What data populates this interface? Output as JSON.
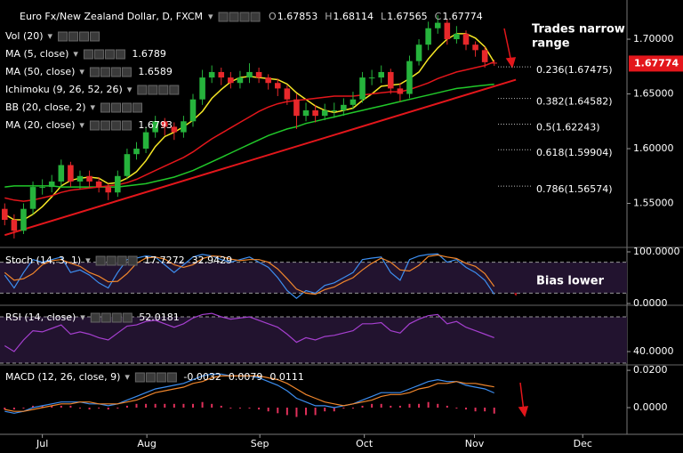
{
  "chart_data": [
    {
      "type": "candlestick",
      "title": "Euro Fx/New Zealand Dollar, D, FXCM",
      "ohlc_letters": [
        "O",
        "H",
        "L",
        "C"
      ],
      "x": [
        0,
        1,
        2,
        3,
        4,
        5,
        6,
        7,
        8,
        9,
        10,
        11,
        12,
        13,
        14,
        15,
        16,
        17,
        18,
        19,
        20,
        21,
        22,
        23,
        24,
        25,
        26,
        27,
        28,
        29,
        30,
        31,
        32,
        33,
        34,
        35,
        36,
        37,
        38,
        39,
        40,
        41,
        42,
        43,
        44,
        45,
        46,
        47,
        48,
        49,
        50,
        51,
        52
      ],
      "xlim": [
        -0.5,
        66.1
      ],
      "xticks": [
        {
          "value": 4,
          "label": "Jul"
        },
        {
          "value": 15.1,
          "label": "Aug"
        },
        {
          "value": 27.1,
          "label": "Sep"
        },
        {
          "value": 38.2,
          "label": "Oct"
        },
        {
          "value": 49.9,
          "label": "Nov"
        },
        {
          "value": 61.4,
          "label": "Dec"
        }
      ],
      "ylim": [
        1.5106,
        1.7358
      ],
      "yticks": [
        {
          "value": 1.55,
          "label": "1.55000"
        },
        {
          "value": 1.6,
          "label": "1.60000"
        },
        {
          "value": 1.65,
          "label": "1.65000"
        },
        {
          "value": 1.7,
          "label": "1.70000"
        }
      ],
      "up_color": "#26b33c",
      "down_color": "#e8282b",
      "candles": {
        "open": [
          1.545,
          1.535,
          1.525,
          1.545,
          1.565,
          1.565,
          1.57,
          1.585,
          1.57,
          1.575,
          1.57,
          1.565,
          1.56,
          1.575,
          1.595,
          1.6,
          1.615,
          1.625,
          1.62,
          1.615,
          1.625,
          1.645,
          1.665,
          1.67,
          1.665,
          1.66,
          1.665,
          1.67,
          1.665,
          1.66,
          1.655,
          1.645,
          1.63,
          1.635,
          1.63,
          1.635,
          1.635,
          1.64,
          1.645,
          1.665,
          1.665,
          1.67,
          1.655,
          1.65,
          1.68,
          1.695,
          1.71,
          1.715,
          1.7,
          1.705,
          1.695,
          1.69,
          1.67853
        ],
        "high": [
          1.55,
          1.54,
          1.55,
          1.57,
          1.572,
          1.576,
          1.59,
          1.588,
          1.58,
          1.58,
          1.574,
          1.568,
          1.58,
          1.6,
          1.606,
          1.62,
          1.63,
          1.628,
          1.624,
          1.63,
          1.65,
          1.672,
          1.676,
          1.674,
          1.67,
          1.671,
          1.678,
          1.674,
          1.668,
          1.664,
          1.658,
          1.65,
          1.642,
          1.64,
          1.641,
          1.642,
          1.646,
          1.652,
          1.67,
          1.672,
          1.676,
          1.673,
          1.66,
          1.685,
          1.7,
          1.716,
          1.722,
          1.718,
          1.712,
          1.708,
          1.698,
          1.693,
          1.68114
        ],
        "low": [
          1.53,
          1.518,
          1.522,
          1.54,
          1.558,
          1.56,
          1.566,
          1.565,
          1.563,
          1.565,
          1.56,
          1.553,
          1.556,
          1.572,
          1.59,
          1.596,
          1.61,
          1.612,
          1.608,
          1.61,
          1.62,
          1.64,
          1.66,
          1.658,
          1.655,
          1.655,
          1.66,
          1.66,
          1.654,
          1.648,
          1.64,
          1.618,
          1.625,
          1.624,
          1.626,
          1.628,
          1.63,
          1.636,
          1.642,
          1.658,
          1.66,
          1.65,
          1.643,
          1.646,
          1.676,
          1.69,
          1.705,
          1.695,
          1.696,
          1.69,
          1.684,
          1.674,
          1.67565
        ],
        "close": [
          1.535,
          1.525,
          1.545,
          1.565,
          1.565,
          1.57,
          1.585,
          1.57,
          1.575,
          1.57,
          1.565,
          1.56,
          1.575,
          1.595,
          1.6,
          1.615,
          1.625,
          1.62,
          1.615,
          1.625,
          1.645,
          1.665,
          1.67,
          1.665,
          1.66,
          1.665,
          1.67,
          1.665,
          1.66,
          1.655,
          1.645,
          1.63,
          1.635,
          1.63,
          1.635,
          1.635,
          1.64,
          1.645,
          1.665,
          1.665,
          1.67,
          1.655,
          1.65,
          1.68,
          1.695,
          1.71,
          1.715,
          1.7,
          1.705,
          1.695,
          1.69,
          1.679,
          1.67774
        ]
      },
      "studies": [
        {
          "name": "Vol (20)"
        },
        {
          "name": "MA (5, close)",
          "color": "#f5e625",
          "values": [
            1.54,
            1.535,
            1.535,
            1.54,
            1.547,
            1.556,
            1.566,
            1.571,
            1.573,
            1.574,
            1.573,
            1.568,
            1.569,
            1.573,
            1.579,
            1.589,
            1.602,
            1.611,
            1.615,
            1.62,
            1.626,
            1.634,
            1.646,
            1.654,
            1.661,
            1.665,
            1.666,
            1.665,
            1.664,
            1.663,
            1.659,
            1.651,
            1.645,
            1.639,
            1.635,
            1.633,
            1.635,
            1.637,
            1.644,
            1.65,
            1.657,
            1.658,
            1.659,
            1.664,
            1.67,
            1.682,
            1.692,
            1.7,
            1.705,
            1.705,
            1.701,
            1.693,
            1.6789
          ]
        },
        {
          "name": "MA (50, close)",
          "color": "#21c82a",
          "values": [
            1.565,
            1.566,
            1.566,
            1.566,
            1.566,
            1.566,
            1.565,
            1.565,
            1.565,
            1.565,
            1.565,
            1.565,
            1.565,
            1.566,
            1.567,
            1.568,
            1.57,
            1.572,
            1.574,
            1.577,
            1.58,
            1.584,
            1.588,
            1.592,
            1.596,
            1.6,
            1.604,
            1.608,
            1.612,
            1.615,
            1.618,
            1.62,
            1.623,
            1.625,
            1.627,
            1.629,
            1.631,
            1.633,
            1.635,
            1.637,
            1.639,
            1.641,
            1.643,
            1.645,
            1.647,
            1.649,
            1.651,
            1.653,
            1.655,
            1.656,
            1.657,
            1.658,
            1.6589
          ]
        },
        {
          "name": "Ichimoku (9, 26, 52, 26)"
        },
        {
          "name": "BB (20, close, 2)"
        },
        {
          "name": "MA (20, close)",
          "color": "#e3161b",
          "values": [
            1.555,
            1.553,
            1.552,
            1.553,
            1.555,
            1.557,
            1.56,
            1.562,
            1.563,
            1.564,
            1.565,
            1.566,
            1.567,
            1.569,
            1.572,
            1.576,
            1.58,
            1.584,
            1.588,
            1.592,
            1.597,
            1.603,
            1.609,
            1.614,
            1.619,
            1.624,
            1.629,
            1.634,
            1.638,
            1.641,
            1.643,
            1.644,
            1.645,
            1.646,
            1.647,
            1.648,
            1.648,
            1.648,
            1.649,
            1.65,
            1.651,
            1.652,
            1.652,
            1.654,
            1.657,
            1.66,
            1.664,
            1.667,
            1.67,
            1.672,
            1.674,
            1.676,
            1.6793
          ]
        }
      ],
      "trendline": {
        "color": "#e3161b",
        "x": [
          0,
          54.3
        ],
        "y": [
          1.521,
          1.663
        ]
      },
      "fib": [
        {
          "label": "0.236(1.67475)",
          "value": 1.67475,
          "color": "#ffffff"
        },
        {
          "label": "0.382(1.64582)",
          "value": 1.64582,
          "color": "#ffffff"
        },
        {
          "label": "0.5(1.62243)",
          "value": 1.62243,
          "color": "#9fc46a"
        },
        {
          "label": "0.618(1.59904)",
          "value": 1.59904,
          "color": "#ffffff"
        },
        {
          "label": "0.786(1.56574)",
          "value": 1.56574,
          "color": "#ffffff"
        }
      ],
      "annotations": [
        "Trades narrow",
        "range"
      ]
    },
    {
      "type": "line",
      "name": "Stoch (14, 3, 1)",
      "ylim": [
        -3.4,
        106.9
      ],
      "yticks": [
        {
          "value": 100,
          "label": "100.0000"
        },
        {
          "value": 0,
          "label": "0.0000"
        }
      ],
      "bands": [
        20,
        80
      ],
      "series": [
        {
          "color": "#3d8ef0",
          "values": [
            55,
            30,
            60,
            85,
            80,
            85,
            90,
            60,
            65,
            55,
            40,
            30,
            60,
            85,
            88,
            92,
            90,
            75,
            60,
            75,
            90,
            95,
            92,
            85,
            80,
            85,
            90,
            80,
            70,
            50,
            25,
            10,
            25,
            20,
            35,
            40,
            50,
            60,
            85,
            88,
            90,
            60,
            45,
            85,
            92,
            95,
            96,
            80,
            85,
            70,
            60,
            45,
            17.7272
          ]
        },
        {
          "color": "#f0862c",
          "values": [
            60,
            45,
            48,
            58,
            75,
            83,
            85,
            78,
            72,
            60,
            53,
            42,
            43,
            58,
            78,
            88,
            90,
            86,
            75,
            70,
            75,
            87,
            92,
            91,
            86,
            83,
            85,
            85,
            80,
            67,
            48,
            28,
            20,
            18,
            27,
            32,
            42,
            50,
            65,
            78,
            88,
            80,
            65,
            63,
            74,
            91,
            94,
            90,
            87,
            78,
            72,
            58,
            32.9429
          ]
        }
      ],
      "annotation": "Bias lower"
    },
    {
      "type": "line",
      "name": "RSI (14, close)",
      "ylim": [
        28.5,
        80
      ],
      "yticks": [
        {
          "value": 40,
          "label": "40.0000"
        }
      ],
      "bands": [
        30,
        70
      ],
      "series": [
        {
          "color": "#a53fcf",
          "values": [
            45,
            40,
            50,
            58,
            57,
            60,
            63,
            55,
            57,
            55,
            52,
            50,
            56,
            62,
            63,
            66,
            67,
            64,
            61,
            64,
            69,
            72,
            73,
            70,
            68,
            69,
            70,
            67,
            64,
            61,
            55,
            48,
            52,
            50,
            53,
            54,
            56,
            58,
            64,
            64,
            65,
            58,
            56,
            64,
            68,
            71,
            72,
            64,
            66,
            61,
            58,
            55,
            52.0181
          ]
        }
      ]
    },
    {
      "type": "line",
      "name": "MACD (12, 26, close, 9)",
      "ylim": [
        -0.0143,
        0.0229
      ],
      "yticks": [
        {
          "value": 0.02,
          "label": "0.0200"
        },
        {
          "value": 0,
          "label": "0.0000"
        }
      ],
      "series": [
        {
          "type": "bar",
          "color": "#e0305a",
          "values": [
            -0.001,
            -0.001,
            0,
            0.001,
            0.001,
            0.001,
            0.001,
            0.001,
            0,
            -0.001,
            0,
            -0.001,
            0,
            0.001,
            0.002,
            0.002,
            0.002,
            0.002,
            0.002,
            0.002,
            0.002,
            0.003,
            0.002,
            0.001,
            0,
            0,
            0,
            -0.001,
            -0.002,
            -0.003,
            -0.004,
            -0.005,
            -0.004,
            -0.004,
            -0.002,
            -0.002,
            0,
            0,
            0.001,
            0.002,
            0.002,
            0.001,
            0.001,
            0.002,
            0.002,
            0.003,
            0.002,
            0.001,
            0,
            -0.001,
            -0.002,
            -0.002,
            -0.0032
          ]
        },
        {
          "color": "#3d8ef0",
          "values": [
            -0.002,
            -0.003,
            -0.002,
            0,
            0.001,
            0.002,
            0.003,
            0.003,
            0.003,
            0.002,
            0.002,
            0.001,
            0.002,
            0.004,
            0.006,
            0.008,
            0.01,
            0.011,
            0.012,
            0.013,
            0.015,
            0.017,
            0.018,
            0.018,
            0.017,
            0.017,
            0.017,
            0.016,
            0.014,
            0.012,
            0.009,
            0.005,
            0.003,
            0.001,
            0.001,
            0.0,
            0.001,
            0.002,
            0.004,
            0.006,
            0.008,
            0.008,
            0.008,
            0.01,
            0.012,
            0.014,
            0.015,
            0.014,
            0.014,
            0.012,
            0.011,
            0.01,
            0.0079
          ]
        },
        {
          "color": "#f0862c",
          "values": [
            -0.001,
            -0.002,
            -0.002,
            -0.001,
            0,
            0.001,
            0.002,
            0.002,
            0.003,
            0.003,
            0.002,
            0.002,
            0.002,
            0.003,
            0.004,
            0.006,
            0.008,
            0.009,
            0.01,
            0.011,
            0.013,
            0.014,
            0.016,
            0.017,
            0.017,
            0.017,
            0.017,
            0.017,
            0.016,
            0.015,
            0.013,
            0.01,
            0.007,
            0.005,
            0.003,
            0.002,
            0.001,
            0.002,
            0.003,
            0.004,
            0.006,
            0.007,
            0.007,
            0.008,
            0.01,
            0.011,
            0.013,
            0.013,
            0.014,
            0.013,
            0.013,
            0.012,
            0.0111
          ]
        }
      ]
    }
  ]
}
